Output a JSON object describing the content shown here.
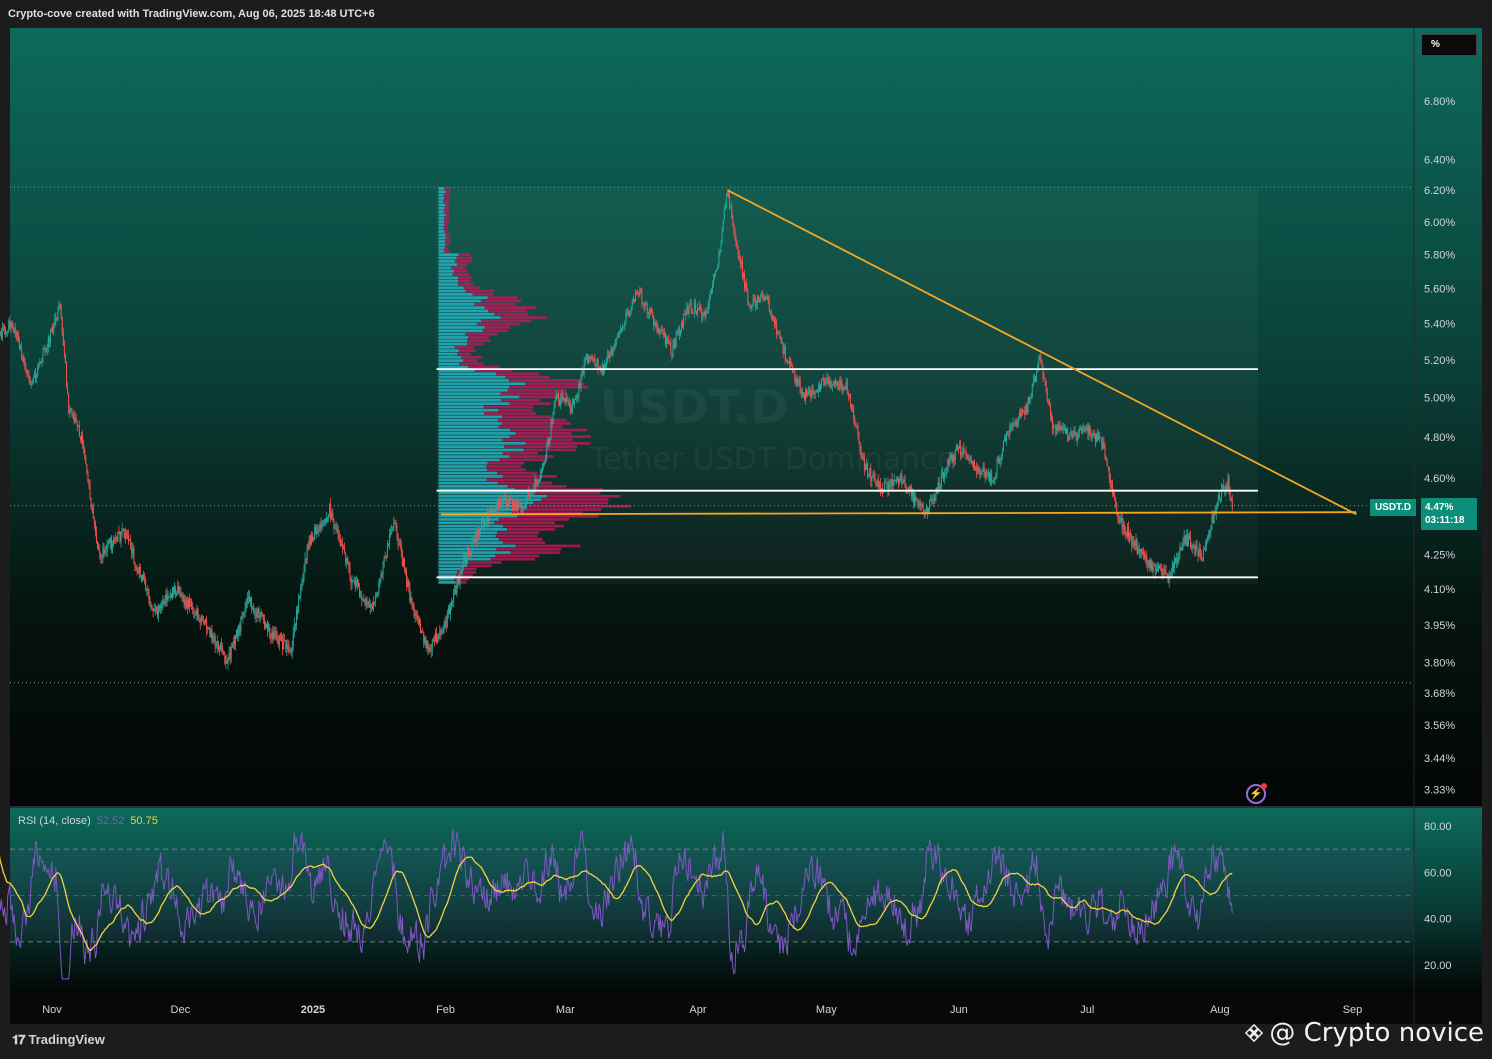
{
  "header": {
    "title": "Crypto-cove created with TradingView.com, Aug 06, 2025 18:48 UTC+6"
  },
  "footer": {
    "brand": "TradingView",
    "credit": "@ Crypto novice"
  },
  "watermark": {
    "line2": "Tether USDT Dominance"
  },
  "colors": {
    "bg_top": "#0d6a5c",
    "bg_bottom": "#050806",
    "candle_up": "#26a69a",
    "candle_down": "#ef5350",
    "trendline": "#f5a623",
    "range_line": "#ffffff",
    "vp_up": "#26b3c2",
    "vp_down": "#c2185b",
    "rsi": "#7e57c2",
    "rsi_ma": "#f5d142",
    "tag": "#0b8f7a"
  },
  "chart_data": {
    "type": "candlestick",
    "symbol": "USDT.D",
    "unit_label": "%",
    "last_price": "4.47%",
    "countdown": "03:11:18",
    "price_axis": {
      "scale": "log",
      "ticks": [
        "6.80%",
        "6.40%",
        "6.20%",
        "6.00%",
        "5.80%",
        "5.60%",
        "5.40%",
        "5.20%",
        "5.00%",
        "4.80%",
        "4.60%",
        "4.25%",
        "4.10%",
        "3.95%",
        "3.80%",
        "3.68%",
        "3.56%",
        "3.44%",
        "3.33%"
      ],
      "range": [
        3.3,
        7.1
      ]
    },
    "time_axis": {
      "ticks": [
        "Nov",
        "Dec",
        "2025",
        "Feb",
        "Mar",
        "Apr",
        "May",
        "Jun",
        "Jul",
        "Aug",
        "Sep"
      ],
      "tick_dates": [
        "2024-11-01",
        "2024-12-01",
        "2025-01-01",
        "2025-02-01",
        "2025-03-01",
        "2025-04-01",
        "2025-05-01",
        "2025-06-01",
        "2025-07-01",
        "2025-08-01",
        "2025-09-01"
      ]
    },
    "close_path": [
      [
        "2024-10-20",
        5.3
      ],
      [
        "2024-10-25",
        5.4
      ],
      [
        "2024-10-29",
        5.05
      ],
      [
        "2024-11-03",
        5.35
      ],
      [
        "2024-11-05",
        5.5
      ],
      [
        "2024-11-07",
        4.95
      ],
      [
        "2024-11-10",
        4.8
      ],
      [
        "2024-11-14",
        4.25
      ],
      [
        "2024-11-20",
        4.35
      ],
      [
        "2024-11-27",
        4.0
      ],
      [
        "2024-12-02",
        4.1
      ],
      [
        "2024-12-09",
        3.95
      ],
      [
        "2024-12-14",
        3.8
      ],
      [
        "2024-12-19",
        4.05
      ],
      [
        "2024-12-25",
        3.9
      ],
      [
        "2024-12-29",
        3.85
      ],
      [
        "2025-01-02",
        4.3
      ],
      [
        "2025-01-07",
        4.45
      ],
      [
        "2025-01-12",
        4.15
      ],
      [
        "2025-01-17",
        4.0
      ],
      [
        "2025-01-22",
        4.4
      ],
      [
        "2025-01-26",
        4.05
      ],
      [
        "2025-01-30",
        3.85
      ],
      [
        "2025-02-03",
        3.95
      ],
      [
        "2025-02-07",
        4.2
      ],
      [
        "2025-02-12",
        4.4
      ],
      [
        "2025-02-17",
        4.5
      ],
      [
        "2025-02-21",
        4.45
      ],
      [
        "2025-02-26",
        4.65
      ],
      [
        "2025-03-01",
        5.0
      ],
      [
        "2025-03-05",
        4.95
      ],
      [
        "2025-03-08",
        5.2
      ],
      [
        "2025-03-12",
        5.15
      ],
      [
        "2025-03-16",
        5.35
      ],
      [
        "2025-03-20",
        5.6
      ],
      [
        "2025-03-24",
        5.4
      ],
      [
        "2025-03-28",
        5.25
      ],
      [
        "2025-04-01",
        5.5
      ],
      [
        "2025-04-05",
        5.45
      ],
      [
        "2025-04-08",
        5.8
      ],
      [
        "2025-04-10",
        6.2
      ],
      [
        "2025-04-12",
        5.9
      ],
      [
        "2025-04-15",
        5.5
      ],
      [
        "2025-04-19",
        5.55
      ],
      [
        "2025-04-24",
        5.2
      ],
      [
        "2025-04-28",
        5.0
      ],
      [
        "2025-05-03",
        5.1
      ],
      [
        "2025-05-08",
        5.05
      ],
      [
        "2025-05-12",
        4.65
      ],
      [
        "2025-05-16",
        4.55
      ],
      [
        "2025-05-21",
        4.6
      ],
      [
        "2025-05-26",
        4.42
      ],
      [
        "2025-05-30",
        4.6
      ],
      [
        "2025-06-03",
        4.75
      ],
      [
        "2025-06-07",
        4.65
      ],
      [
        "2025-06-11",
        4.6
      ],
      [
        "2025-06-15",
        4.85
      ],
      [
        "2025-06-19",
        4.95
      ],
      [
        "2025-06-22",
        5.2
      ],
      [
        "2025-06-25",
        4.85
      ],
      [
        "2025-06-30",
        4.8
      ],
      [
        "2025-07-03",
        4.85
      ],
      [
        "2025-07-07",
        4.75
      ],
      [
        "2025-07-10",
        4.42
      ],
      [
        "2025-07-14",
        4.3
      ],
      [
        "2025-07-18",
        4.2
      ],
      [
        "2025-07-22",
        4.15
      ],
      [
        "2025-07-26",
        4.32
      ],
      [
        "2025-07-30",
        4.25
      ],
      [
        "2025-08-03",
        4.52
      ],
      [
        "2025-08-05",
        4.58
      ],
      [
        "2025-08-06",
        4.47
      ]
    ],
    "trendline": {
      "from": [
        "2025-04-10",
        6.2
      ],
      "to": [
        "2025-09-04",
        4.43
      ]
    },
    "support_line": {
      "from": [
        "2025-02-02",
        4.43
      ],
      "to": [
        "2025-09-04",
        4.44
      ]
    },
    "range_lines": [
      {
        "from": "2025-02-01",
        "to": "2025-08-12",
        "value": 5.15
      },
      {
        "from": "2025-02-01",
        "to": "2025-08-12",
        "value": 4.54
      },
      {
        "from": "2025-02-01",
        "to": "2025-08-12",
        "value": 4.15
      }
    ],
    "dotted_levels": [
      6.22,
      4.47,
      3.72
    ],
    "volume_profile": {
      "price_range": [
        4.12,
        6.22
      ],
      "rows": 120
    },
    "rsi": {
      "label": "RSI (14, close)",
      "value": "52.52",
      "ma_value": "50.75",
      "ticks": [
        "80.00",
        "60.00",
        "40.00",
        "20.00"
      ],
      "upper_band": 70,
      "lower_band": 30,
      "middle": 50,
      "range": [
        12,
        88
      ]
    }
  }
}
